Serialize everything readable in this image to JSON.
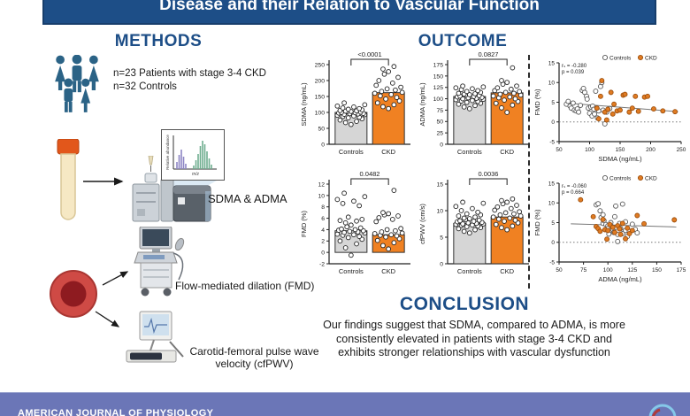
{
  "header": {
    "title": "Disease and their Relation to Vascular Function"
  },
  "sections": {
    "methods_label": "METHODS",
    "outcome_label": "OUTCOME",
    "conclusion_label": "CONCLUSION"
  },
  "methods": {
    "cohort_line1": "n=23 Patients with stage 3-4 CKD",
    "cohort_line2": "n=32 Controls",
    "assay_label": "SDMA & ADMA",
    "spectrum_ylabel": "Relative abundance",
    "spectrum_xlabel": "m/z",
    "fmd_label": "Flow-mediated dilation (FMD)",
    "cfpwv_line1": "Carotid-femoral pulse wave",
    "cfpwv_line2": "velocity (cfPWV)"
  },
  "conclusion": {
    "text": "Our findings suggest that SDMA, compared to ADMA, is more consistently elevated in patients with stage 3-4 CKD and exhibits stronger relationships with vascular dysfunction"
  },
  "footer": {
    "journal": "AMERICAN JOURNAL OF PHYSIOLOGY"
  },
  "colors": {
    "accent_blue": "#1d4e87",
    "bar_gray": "#d6d6d6",
    "orange": "#f08122",
    "ckd_point": "#e07b22",
    "ckd_point_stroke": "#9c4f0e",
    "footer_purple": "#6b76b7",
    "icon_blue": "#2b6386",
    "blood_red": "#cf4a45"
  },
  "chart_data": [
    {
      "type": "bar",
      "name": "sdma-bar",
      "ylabel": "SDMA (ng/mL)",
      "ylim": [
        0,
        250
      ],
      "yticks": [
        0,
        50,
        100,
        150,
        200,
        250
      ],
      "categories": [
        "Controls",
        "CKD"
      ],
      "values": [
        100,
        162
      ],
      "p_label": "<0.0001",
      "points": [
        [
          62,
          68,
          72,
          76,
          80,
          83,
          85,
          87,
          89,
          91,
          93,
          94,
          95,
          96,
          97,
          98,
          99,
          100,
          101,
          102,
          103,
          104,
          105,
          106,
          108,
          110,
          112,
          114,
          117,
          120,
          124,
          130
        ],
        [
          112,
          118,
          124,
          130,
          136,
          142,
          147,
          152,
          156,
          160,
          163,
          166,
          170,
          174,
          179,
          185,
          192,
          200,
          210,
          220,
          228,
          236,
          244
        ]
      ]
    },
    {
      "type": "bar",
      "name": "adma-bar",
      "ylabel": "ADMA (ng/mL)",
      "ylim": [
        0,
        175
      ],
      "yticks": [
        0,
        25,
        50,
        75,
        100,
        125,
        150,
        175
      ],
      "categories": [
        "Controls",
        "CKD"
      ],
      "values": [
        105,
        113
      ],
      "p_label": "0.0827",
      "points": [
        [
          78,
          82,
          85,
          88,
          90,
          92,
          94,
          95,
          96,
          98,
          99,
          100,
          101,
          102,
          103,
          104,
          105,
          106,
          107,
          108,
          109,
          110,
          111,
          112,
          114,
          116,
          118,
          120,
          122,
          124,
          126,
          128
        ],
        [
          70,
          80,
          86,
          90,
          94,
          97,
          100,
          102,
          104,
          106,
          108,
          110,
          112,
          114,
          116,
          118,
          121,
          124,
          128,
          132,
          136,
          140,
          168
        ]
      ]
    },
    {
      "type": "bar",
      "name": "fmd-bar",
      "ylabel": "FMD (%)",
      "ylim": [
        -2,
        12
      ],
      "yticks": [
        -2,
        0,
        2,
        4,
        6,
        8,
        10,
        12
      ],
      "categories": [
        "Controls",
        "CKD"
      ],
      "values": [
        3.8,
        3.1
      ],
      "p_label": "0.0482",
      "points": [
        [
          -0.5,
          0.8,
          1.5,
          2.0,
          2.3,
          2.6,
          2.8,
          3.0,
          3.1,
          3.2,
          3.4,
          3.5,
          3.6,
          3.7,
          3.8,
          3.9,
          4.0,
          4.1,
          4.3,
          4.5,
          4.8,
          5.2,
          5.5,
          5.6,
          5.8,
          6.2,
          8.2,
          8.6,
          9.0,
          9.3,
          9.8,
          10.4
        ],
        [
          0.6,
          1.2,
          1.7,
          2.1,
          2.4,
          2.7,
          2.9,
          3.0,
          3.1,
          3.3,
          3.4,
          3.6,
          3.8,
          4.0,
          4.2,
          5.4,
          5.8,
          6.1,
          6.4,
          6.6,
          6.8,
          7.0,
          10.9
        ]
      ]
    },
    {
      "type": "bar",
      "name": "cfpwv-bar",
      "ylabel": "cfPWV (cm/s)",
      "ylim": [
        0,
        15
      ],
      "yticks": [
        0,
        5,
        10,
        15
      ],
      "categories": [
        "Controls",
        "CKD"
      ],
      "values": [
        7.6,
        8.8
      ],
      "p_label": "0.0036",
      "points": [
        [
          5.8,
          6.1,
          6.4,
          6.6,
          6.8,
          7.0,
          7.1,
          7.2,
          7.3,
          7.4,
          7.5,
          7.5,
          7.6,
          7.7,
          7.8,
          7.9,
          8.0,
          8.1,
          8.2,
          8.3,
          8.5,
          8.6,
          8.8,
          9.0,
          9.2,
          9.4,
          9.7,
          10.0,
          10.4,
          10.8,
          11.4,
          11.6
        ],
        [
          6.4,
          6.8,
          7.1,
          7.4,
          7.7,
          8.0,
          8.2,
          8.4,
          8.6,
          8.8,
          9.0,
          9.2,
          9.4,
          9.6,
          9.8,
          10.1,
          10.4,
          10.7,
          11.0,
          11.3,
          11.6,
          11.9,
          12.2
        ]
      ]
    },
    {
      "type": "scatter",
      "name": "fmd-vs-sdma",
      "xlabel": "SDMA (ng/mL)",
      "ylabel": "FMD (%)",
      "xlim": [
        50,
        250
      ],
      "xticks": [
        50,
        100,
        150,
        200,
        250
      ],
      "ylim": [
        -5,
        15
      ],
      "yticks": [
        -5,
        0,
        5,
        10,
        15
      ],
      "legend": [
        "Controls",
        "CKD"
      ],
      "stats_line1": "rₛ = -0.280",
      "stats_line2": "p = 0.039",
      "zero_line": 0,
      "trend": [
        [
          60,
          4.8
        ],
        [
          245,
          2.6
        ]
      ],
      "series": [
        {
          "name": "Controls",
          "points": [
            [
              62,
              4.5
            ],
            [
              65,
              5.2
            ],
            [
              68,
              4.0
            ],
            [
              70,
              3.5
            ],
            [
              73,
              4.8
            ],
            [
              75,
              3.0
            ],
            [
              78,
              2.8
            ],
            [
              80,
              3.3
            ],
            [
              82,
              2.5
            ],
            [
              85,
              4.2
            ],
            [
              88,
              8.0
            ],
            [
              90,
              8.5
            ],
            [
              92,
              7.5
            ],
            [
              95,
              6.5
            ],
            [
              96,
              5.8
            ],
            [
              98,
              3.5
            ],
            [
              100,
              2.2
            ],
            [
              102,
              3.8
            ],
            [
              104,
              1.5
            ],
            [
              105,
              4.0
            ],
            [
              107,
              3.2
            ],
            [
              108,
              2.0
            ],
            [
              110,
              7.8
            ],
            [
              112,
              3.5
            ],
            [
              113,
              1.0
            ],
            [
              115,
              2.8
            ],
            [
              118,
              9.0
            ],
            [
              120,
              10.0
            ],
            [
              122,
              3.0
            ],
            [
              125,
              -0.5
            ],
            [
              128,
              2.5
            ],
            [
              133,
              3.4
            ]
          ]
        },
        {
          "name": "CKD",
          "points": [
            [
              112,
              3.5
            ],
            [
              115,
              0.8
            ],
            [
              118,
              6.5
            ],
            [
              120,
              10.5
            ],
            [
              125,
              2.5
            ],
            [
              128,
              0.5
            ],
            [
              130,
              3.2
            ],
            [
              135,
              7.5
            ],
            [
              138,
              2.0
            ],
            [
              140,
              4.5
            ],
            [
              145,
              2.8
            ],
            [
              150,
              3.0
            ],
            [
              155,
              6.8
            ],
            [
              158,
              7.0
            ],
            [
              165,
              2.5
            ],
            [
              170,
              3.5
            ],
            [
              175,
              6.5
            ],
            [
              180,
              2.7
            ],
            [
              190,
              6.3
            ],
            [
              195,
              6.5
            ],
            [
              205,
              3.3
            ],
            [
              220,
              2.8
            ],
            [
              240,
              2.6
            ]
          ]
        }
      ]
    },
    {
      "type": "scatter",
      "name": "fmd-vs-adma",
      "xlabel": "ADMA (ng/mL)",
      "ylabel": "FMD (%)",
      "xlim": [
        50,
        175
      ],
      "xticks": [
        50,
        75,
        100,
        125,
        150,
        175
      ],
      "ylim": [
        -5,
        15
      ],
      "yticks": [
        -5,
        0,
        5,
        10,
        15
      ],
      "legend": [
        "Controls",
        "CKD"
      ],
      "stats_line1": "rₛ = -0.060",
      "stats_line2": "p = 0.664",
      "zero_line": 0,
      "trend": [
        [
          62,
          4.7
        ],
        [
          170,
          3.9
        ]
      ],
      "series": [
        {
          "name": "Controls",
          "points": [
            [
              88,
              9.5
            ],
            [
              90,
              9.8
            ],
            [
              92,
              8.0
            ],
            [
              93,
              6.3
            ],
            [
              95,
              7.0
            ],
            [
              95,
              4.8
            ],
            [
              96,
              5.5
            ],
            [
              98,
              4.5
            ],
            [
              100,
              4.2
            ],
            [
              100,
              3.5
            ],
            [
              102,
              3.0
            ],
            [
              103,
              5.0
            ],
            [
              104,
              4.0
            ],
            [
              105,
              3.2
            ],
            [
              106,
              2.5
            ],
            [
              107,
              6.5
            ],
            [
              108,
              3.8
            ],
            [
              108,
              9.2
            ],
            [
              110,
              2.0
            ],
            [
              110,
              0.2
            ],
            [
              112,
              4.8
            ],
            [
              113,
              3.5
            ],
            [
              115,
              2.2
            ],
            [
              115,
              9.7
            ],
            [
              118,
              3.0
            ],
            [
              120,
              1.5
            ],
            [
              122,
              2.8
            ],
            [
              125,
              4.6
            ],
            [
              128,
              3.3
            ],
            [
              130,
              2.4
            ],
            [
              118,
              5.2
            ],
            [
              101,
              2.1
            ]
          ]
        },
        {
          "name": "CKD",
          "points": [
            [
              72,
              10.8
            ],
            [
              85,
              6.5
            ],
            [
              88,
              4.0
            ],
            [
              90,
              3.5
            ],
            [
              92,
              2.8
            ],
            [
              95,
              5.8
            ],
            [
              97,
              3.2
            ],
            [
              99,
              0.8
            ],
            [
              100,
              3.0
            ],
            [
              102,
              4.5
            ],
            [
              105,
              3.8
            ],
            [
              107,
              2.5
            ],
            [
              110,
              4.2
            ],
            [
              112,
              3.4
            ],
            [
              113,
              2.0
            ],
            [
              115,
              4.8
            ],
            [
              118,
              0.9
            ],
            [
              120,
              3.6
            ],
            [
              122,
              2.2
            ],
            [
              125,
              3.0
            ],
            [
              130,
              6.8
            ],
            [
              137,
              4.7
            ],
            [
              168,
              5.7
            ]
          ]
        }
      ]
    }
  ]
}
